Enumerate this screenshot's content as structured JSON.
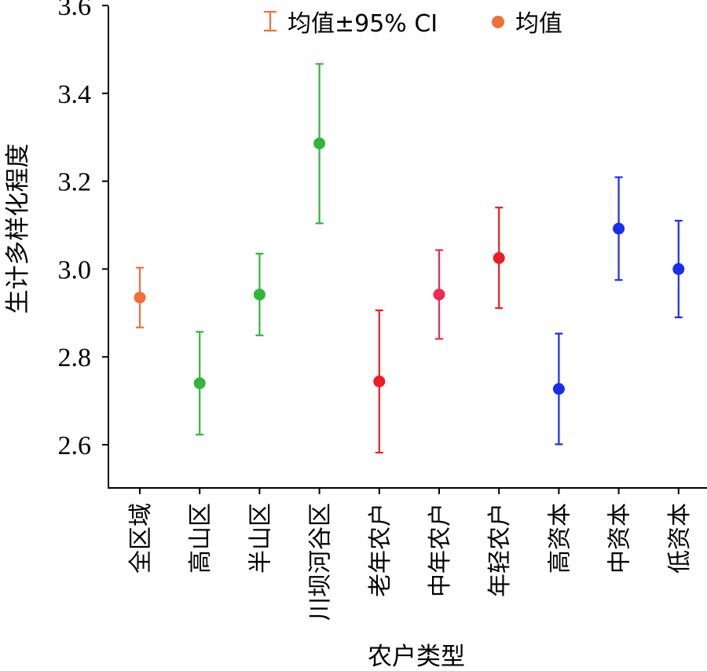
{
  "chart_data": {
    "type": "scatter",
    "xlabel": "农户类型",
    "ylabel": "生计多样化程度",
    "ylim": [
      2.5,
      3.6
    ],
    "yticks": [
      "2.6",
      "2.8",
      "3.0",
      "3.2",
      "3.4",
      "3.6"
    ],
    "legend": {
      "position": "top",
      "ci_label": "均值±95% CI",
      "mean_label": "均值",
      "ci_color": "#f0703a",
      "mean_color": "#f0703a"
    },
    "grid": false,
    "points": [
      {
        "category": "全区域",
        "mean": 2.935,
        "lower": 2.867,
        "upper": 3.003,
        "color": "#f0703a"
      },
      {
        "category": "高山区",
        "mean": 2.74,
        "lower": 2.623,
        "upper": 2.857,
        "color": "#33b43c"
      },
      {
        "category": "半山区",
        "mean": 2.942,
        "lower": 2.849,
        "upper": 3.035,
        "color": "#33b43c"
      },
      {
        "category": "川坝河谷区",
        "mean": 3.286,
        "lower": 3.104,
        "upper": 3.467,
        "color": "#33b43c"
      },
      {
        "category": "老年农户",
        "mean": 2.744,
        "lower": 2.582,
        "upper": 2.906,
        "color": "#ee1c25"
      },
      {
        "category": "中年农户",
        "mean": 2.942,
        "lower": 2.841,
        "upper": 3.043,
        "color": "#ee2a55"
      },
      {
        "category": "年轻农户",
        "mean": 3.025,
        "lower": 2.911,
        "upper": 3.14,
        "color": "#ee1c25"
      },
      {
        "category": "高资本",
        "mean": 2.727,
        "lower": 2.601,
        "upper": 2.853,
        "color": "#1a2eea"
      },
      {
        "category": "中资本",
        "mean": 3.092,
        "lower": 2.975,
        "upper": 3.209,
        "color": "#1a2eea"
      },
      {
        "category": "低资本",
        "mean": 3.0,
        "lower": 2.89,
        "upper": 3.11,
        "color": "#1a2eea"
      }
    ]
  }
}
